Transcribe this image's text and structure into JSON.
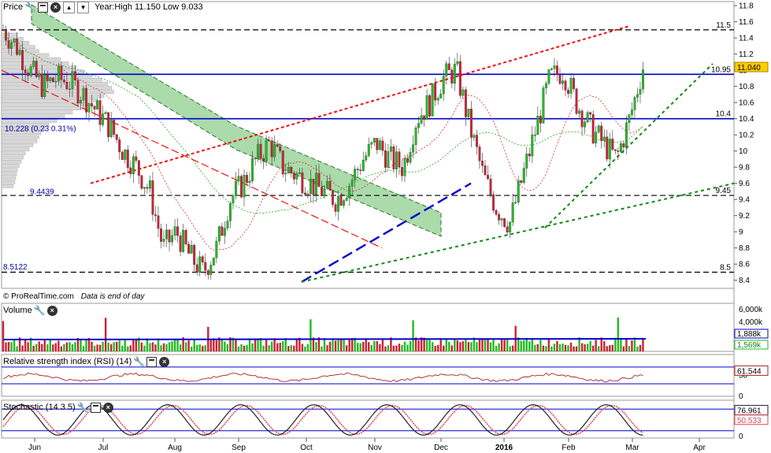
{
  "panels": {
    "price": {
      "title": "Price",
      "info": "Year:High 11.150 Low 9.033",
      "watermark": "© ProRealTime.com",
      "note": "Data is end of day"
    },
    "volume": {
      "title": "Volume"
    },
    "rsi": {
      "title": "Relative strength index (RSI) (14)"
    },
    "stoch": {
      "title": "Stochastic (14 3 5)"
    }
  },
  "icons": {
    "settings": "wrench-icon",
    "window": "window-icon",
    "close": "close-icon",
    "arrow_up": "arrow-up-icon",
    "arrow_down": "arrow-down-icon"
  },
  "colors": {
    "up": "#22bb22",
    "down": "#cc2233",
    "level": "#0000cc",
    "support": "#118811",
    "resistance": "#ee1111",
    "channel": "#66bb66",
    "badge": "#ffcc00"
  },
  "chart_data": [
    {
      "type": "candlestick",
      "x_ticks": [
        "Jun",
        "Jul",
        "Aug",
        "Sep",
        "Oct",
        "Nov",
        "Dec",
        "2016",
        "Feb",
        "Mar",
        "Apr"
      ],
      "y_ticks": [
        "8.4",
        "8.6",
        "8.8",
        "9",
        "9.2",
        "9.4",
        "9.6",
        "9.8",
        "10",
        "10.2",
        "10.4",
        "10.6",
        "10.8",
        "11",
        "11.2",
        "11.4",
        "11.6",
        "11.8"
      ],
      "ylim": [
        8.3,
        11.85
      ],
      "last_price": "11.040",
      "levels": [
        {
          "value": 11.5,
          "label": "11.5",
          "style": "dashed",
          "color": "#000000"
        },
        {
          "value": 10.95,
          "label": "10.95",
          "style": "solid",
          "color": "#0000cc"
        },
        {
          "value": 10.4,
          "label": "10.4",
          "style": "solid",
          "color": "#0000cc"
        },
        {
          "value": 9.45,
          "label": "9.45",
          "style": "dashed",
          "color": "#000000"
        },
        {
          "value": 8.5,
          "label": "8.5",
          "style": "dashed",
          "color": "#000000"
        }
      ],
      "annotations": [
        {
          "label": "10.228 (0.23 0.31%)",
          "value": 10.228
        },
        {
          "label": "9.4439",
          "value": 9.4439
        },
        {
          "label": "8.5122",
          "value": 8.5122
        }
      ],
      "close_path": [
        11.5,
        11.3,
        11.0,
        10.8,
        10.9,
        10.85,
        10.7,
        10.5,
        10.3,
        10.0,
        9.8,
        9.5,
        8.8,
        9.0,
        8.7,
        8.5,
        8.8,
        9.4,
        9.6,
        9.9,
        10.1,
        9.8,
        9.7,
        9.6,
        9.5,
        9.4,
        9.6,
        9.9,
        10.1,
        9.9,
        9.8,
        10.4,
        10.6,
        10.9,
        11.0,
        10.3,
        9.7,
        9.3,
        9.1,
        9.7,
        10.3,
        10.9,
        11.0,
        10.6,
        10.3,
        10.1,
        9.9,
        10.4,
        11.04
      ]
    },
    {
      "type": "bar",
      "title": "Volume",
      "y_ticks": [
        "4,000k",
        "6,000k"
      ],
      "values_labels": [
        "1,888k",
        "1,569k"
      ]
    },
    {
      "type": "line",
      "title": "Relative strength index (RSI) (14)",
      "y_ticks": [
        "0",
        "50"
      ],
      "last": "61.544"
    },
    {
      "type": "line",
      "title": "Stochastic (14 3 5)",
      "y_ticks": [
        "0",
        "50"
      ],
      "last": [
        "76.961",
        "50.533"
      ]
    }
  ]
}
